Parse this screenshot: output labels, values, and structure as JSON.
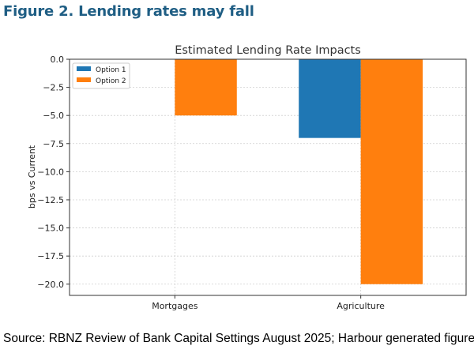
{
  "heading": "Figure 2. Lending rates may fall",
  "source": "Source: RBNZ Review of Bank Capital Settings August 2025; Harbour generated figure",
  "chart_data": {
    "type": "bar",
    "title": "Estimated Lending Rate Impacts",
    "xlabel": "",
    "ylabel": "bps vs Current",
    "categories": [
      "Mortgages",
      "Agriculture"
    ],
    "series": [
      {
        "name": "Option 1",
        "values": [
          0,
          -7
        ],
        "color": "#1F77B4"
      },
      {
        "name": "Option 2",
        "values": [
          -5,
          -20
        ],
        "color": "#FF7F0E"
      }
    ],
    "ylim": [
      -21,
      0
    ],
    "yticks": [
      0.0,
      -2.5,
      -5.0,
      -7.5,
      -10.0,
      -12.5,
      -15.0,
      -17.5,
      -20.0
    ],
    "ytick_labels": [
      "0.0",
      "−2.5",
      "−5.0",
      "−7.5",
      "−10.0",
      "−12.5",
      "−15.0",
      "−17.5",
      "−20.0"
    ],
    "grid": true,
    "legend_position": "top-left"
  }
}
